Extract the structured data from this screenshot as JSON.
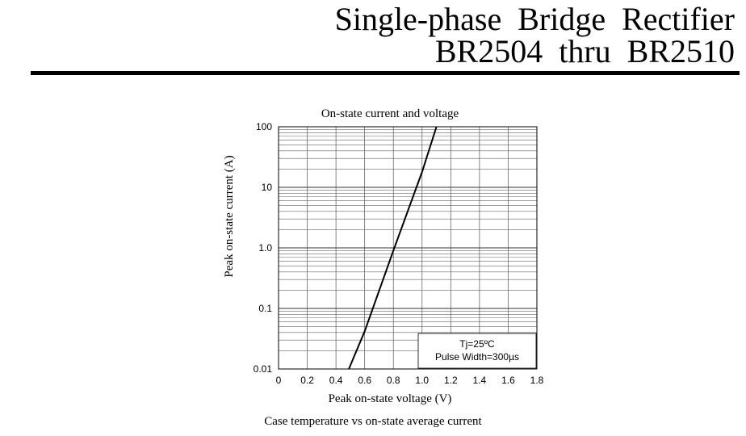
{
  "header": {
    "title_line1": "Single-phase Bridge Rectifier",
    "title_line2": "BR2504 thru BR2510"
  },
  "chart_data": {
    "type": "line",
    "title": "On-state current and voltage",
    "xlabel": "Peak on-state voltage (V)",
    "ylabel": "Peak on-state current (A)",
    "xlim": [
      0,
      1.8
    ],
    "ylim": [
      0.01,
      100
    ],
    "yscale": "log",
    "grid": true,
    "x_ticks": [
      "0",
      "0.2",
      "0.4",
      "0.6",
      "0.8",
      "1.0",
      "1.2",
      "1.4",
      "1.6",
      "1.8"
    ],
    "y_ticks": [
      "0.01",
      "0.1",
      "1.0",
      "10",
      "100"
    ],
    "series": [
      {
        "x": [
          0.49,
          0.6,
          0.8,
          1.0,
          1.1
        ],
        "y": [
          0.01,
          0.042,
          0.9,
          18,
          100
        ]
      }
    ],
    "annotation_lines": [
      "Tj=25ºC",
      "Pulse Width=300µs"
    ]
  },
  "next_caption": "Case temperature vs on-state average current"
}
